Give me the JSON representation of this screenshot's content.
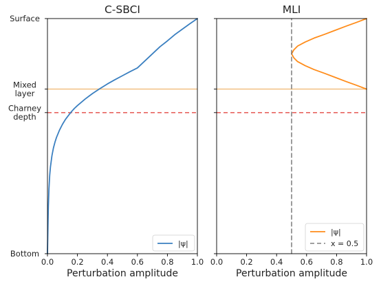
{
  "chart_data": [
    {
      "type": "line",
      "title": "C-SBCI",
      "xlabel": "Perturbation amplitude",
      "ylabel": "",
      "xlim": [
        0,
        1
      ],
      "ylim": [
        0,
        1
      ],
      "xticks": [
        "0.0",
        "0.2",
        "0.4",
        "0.6",
        "0.8",
        "1.0"
      ],
      "yticks": [
        {
          "value": 1.0,
          "lines": [
            "Surface"
          ]
        },
        {
          "value": 0.7,
          "lines": [
            "Mixed",
            "layer"
          ]
        },
        {
          "value": 0.6,
          "lines": [
            "Charney",
            "depth"
          ]
        },
        {
          "value": 0.0,
          "lines": [
            "Bottom"
          ]
        }
      ],
      "grid": false,
      "legend_position": "lower right",
      "series": [
        {
          "name": "|ψ|",
          "color": "#3a7fc0",
          "style": "solid",
          "x": [
            0.0,
            0.002,
            0.004,
            0.006,
            0.01,
            0.015,
            0.02,
            0.03,
            0.04,
            0.05,
            0.06,
            0.08,
            0.1,
            0.12,
            0.14,
            0.16,
            0.18,
            0.2,
            0.25,
            0.3,
            0.35,
            0.4,
            0.45,
            0.5,
            0.55,
            0.6,
            0.65,
            0.7,
            0.75,
            0.8,
            0.85,
            0.9,
            0.95,
            1.0
          ],
          "y": [
            0.0,
            0.07,
            0.14,
            0.2,
            0.275,
            0.333,
            0.369,
            0.417,
            0.45,
            0.474,
            0.494,
            0.525,
            0.55,
            0.571,
            0.588,
            0.604,
            0.618,
            0.63,
            0.657,
            0.681,
            0.702,
            0.722,
            0.74,
            0.757,
            0.774,
            0.79,
            0.82,
            0.85,
            0.88,
            0.905,
            0.932,
            0.955,
            0.978,
            1.0
          ]
        }
      ],
      "hlines": [
        {
          "y": 0.7,
          "color": "#f2c48a",
          "style": "solid"
        },
        {
          "y": 0.6,
          "color": "#e8635f",
          "style": "dashed"
        }
      ]
    },
    {
      "type": "line",
      "title": "MLI",
      "xlabel": "Perturbation amplitude",
      "ylabel": "",
      "xlim": [
        0,
        1
      ],
      "ylim": [
        0,
        1
      ],
      "xticks": [
        "0.0",
        "0.2",
        "0.4",
        "0.6",
        "0.8",
        "1.0"
      ],
      "grid": false,
      "legend_position": "lower right",
      "series": [
        {
          "name": "|ψ|",
          "color": "#ff8c1a",
          "style": "solid",
          "x": [
            1.0,
            0.93,
            0.86,
            0.79,
            0.72,
            0.65,
            0.59,
            0.54,
            0.515,
            0.5,
            0.515,
            0.54,
            0.59,
            0.65,
            0.72,
            0.79,
            0.86,
            0.93,
            1.0
          ],
          "y": [
            1.0,
            0.983,
            0.967,
            0.95,
            0.933,
            0.917,
            0.9,
            0.883,
            0.867,
            0.85,
            0.833,
            0.817,
            0.8,
            0.783,
            0.767,
            0.75,
            0.733,
            0.717,
            0.7
          ]
        },
        {
          "name": "x = 0.5",
          "color": "#666666",
          "style": "dashed",
          "x": [
            0.5,
            0.5
          ],
          "y": [
            0,
            1
          ]
        }
      ],
      "hlines": [
        {
          "y": 0.7,
          "color": "#f2c48a",
          "style": "solid"
        },
        {
          "y": 0.6,
          "color": "#e8635f",
          "style": "dashed"
        }
      ]
    }
  ]
}
